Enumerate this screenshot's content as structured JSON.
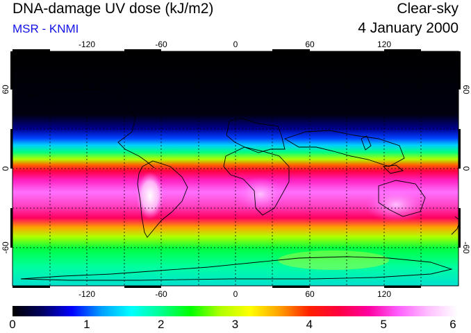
{
  "header": {
    "title": "DNA-damage UV dose (kJ/m2)",
    "subtitle": "MSR - KNMI",
    "sky_condition": "Clear-sky",
    "date": "4 January 2000"
  },
  "map": {
    "projection": "equirectangular",
    "lon_range": [
      -180,
      180
    ],
    "lat_range": [
      -90,
      90
    ],
    "longitude_ticks": [
      "-120",
      "-60",
      "0",
      "60",
      "120"
    ],
    "latitude_ticks": [
      "60",
      "0",
      "-60"
    ],
    "gridlines": "dotted"
  },
  "colorbar": {
    "ticks": [
      "0",
      "1",
      "2",
      "3",
      "4",
      "5",
      "6"
    ],
    "colors": [
      "#000000",
      "#000060",
      "#0000ff",
      "#00a0ff",
      "#00ffff",
      "#00ff90",
      "#00ff00",
      "#b0ff00",
      "#ffff00",
      "#ffa000",
      "#ff2000",
      "#ff0040",
      "#ff00a0",
      "#ff60ff",
      "#ffc0ff",
      "#ffffff"
    ]
  }
}
